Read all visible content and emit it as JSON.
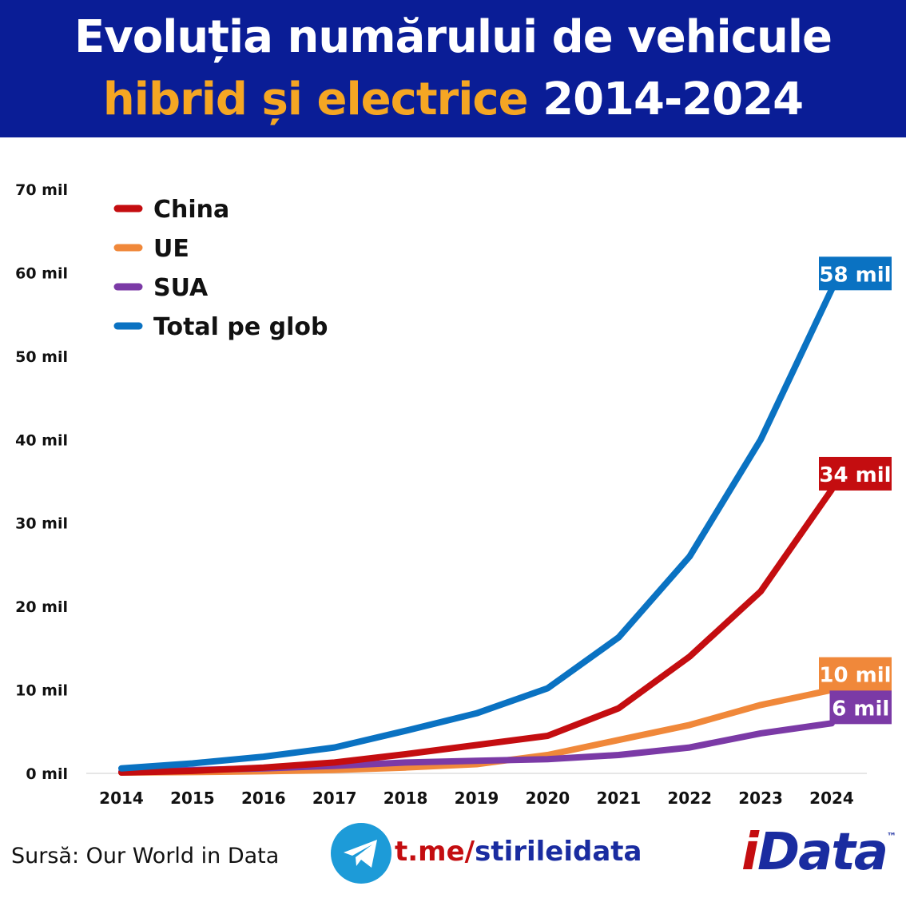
{
  "header": {
    "line1": "Evoluția numărului de vehicule",
    "line2_highlight": "hibrid și electrice",
    "line2_rest": "2014-2024"
  },
  "chart_data": {
    "type": "line",
    "x": [
      2014,
      2015,
      2016,
      2017,
      2018,
      2019,
      2020,
      2021,
      2022,
      2023,
      2024
    ],
    "y_ticks": [
      "0 mil",
      "10 mil",
      "20 mil",
      "30 mil",
      "40 mil",
      "50 mil",
      "60 mil",
      "70 mil"
    ],
    "y_tick_values": [
      0,
      10,
      20,
      30,
      40,
      50,
      60,
      70
    ],
    "ylim": [
      0,
      70
    ],
    "grid": false,
    "legend_position": "top-left",
    "series": [
      {
        "name": "China",
        "color": "#c40d10",
        "values": [
          0.1,
          0.3,
          0.7,
          1.3,
          2.3,
          3.4,
          4.5,
          7.8,
          14.0,
          21.8,
          34
        ],
        "end_label": "34 mil"
      },
      {
        "name": "UE",
        "color": "#f0883a",
        "values": [
          0.1,
          0.15,
          0.25,
          0.4,
          0.7,
          1.1,
          2.2,
          4.0,
          5.8,
          8.2,
          10
        ],
        "end_label": "10 mil"
      },
      {
        "name": "SUA",
        "color": "#7b3aa6",
        "values": [
          0.2,
          0.4,
          0.6,
          0.9,
          1.3,
          1.5,
          1.7,
          2.2,
          3.1,
          4.8,
          6
        ],
        "end_label": "6 mil"
      },
      {
        "name": "Total pe glob",
        "color": "#0a72c2",
        "values": [
          0.6,
          1.2,
          2.0,
          3.1,
          5.1,
          7.2,
          10.2,
          16.3,
          26.0,
          40.0,
          58
        ],
        "end_label": "58 mil"
      }
    ]
  },
  "footer": {
    "source": "Sursă: Our World in Data",
    "telegram_prefix": "t.me/",
    "telegram_handle": "stirileidata",
    "telegram_icon": "telegram-icon",
    "logo_i": "i",
    "logo_rest": "Data",
    "logo_tm": "™"
  }
}
